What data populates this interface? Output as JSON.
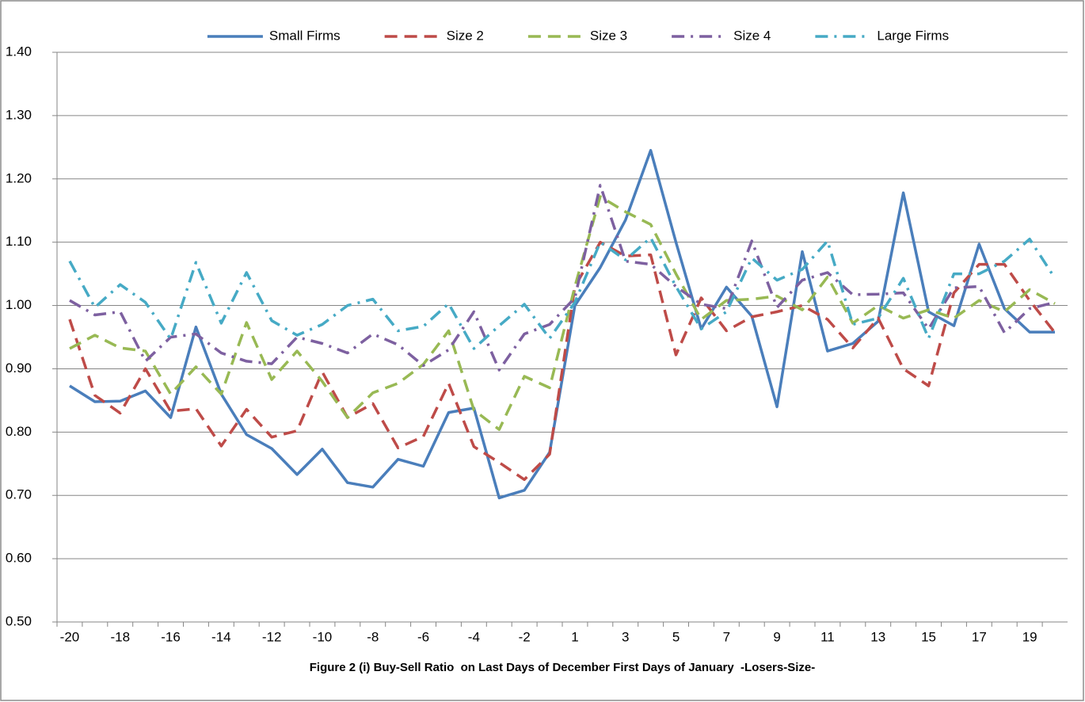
{
  "chart_data": {
    "type": "line",
    "x_label": "Figure 2 (i) Buy-Sell Ratio  on Last Days of December First Days of January  -Losers-Size-",
    "categories": [
      "-20",
      null,
      "-18",
      null,
      "-16",
      null,
      "-14",
      null,
      "-12",
      null,
      "-10",
      null,
      "-8",
      null,
      "-6",
      null,
      "-4",
      null,
      "-2",
      null,
      "1",
      null,
      "3",
      null,
      "5",
      null,
      "7",
      null,
      "9",
      null,
      "11",
      null,
      "13",
      null,
      "15",
      null,
      "17",
      null,
      "19",
      null
    ],
    "ylim": [
      0.5,
      1.4
    ],
    "yticks": [
      {
        "value": 0.5,
        "label": "0.50"
      },
      {
        "value": 0.6,
        "label": "0.60"
      },
      {
        "value": 0.7,
        "label": "0.70"
      },
      {
        "value": 0.8,
        "label": "0.80"
      },
      {
        "value": 0.9,
        "label": "0.90"
      },
      {
        "value": 1.0,
        "label": "1.00"
      },
      {
        "value": 1.1,
        "label": "1.10"
      },
      {
        "value": 1.2,
        "label": "1.20"
      },
      {
        "value": 1.3,
        "label": "1.30"
      },
      {
        "value": 1.4,
        "label": "1.40"
      }
    ],
    "grid": true,
    "legend": "top",
    "series": [
      {
        "name": "Small Firms",
        "color": "#4a7ebb",
        "line_style": "solid",
        "values": [
          0.873,
          0.848,
          0.849,
          0.865,
          0.823,
          0.966,
          0.86,
          0.796,
          0.774,
          0.733,
          0.773,
          0.72,
          0.713,
          0.757,
          0.746,
          0.831,
          0.838,
          0.696,
          0.708,
          0.768,
          1.0,
          1.06,
          1.135,
          1.245,
          1.1,
          0.963,
          1.029,
          0.983,
          0.84,
          1.085,
          0.928,
          0.94,
          0.975,
          1.178,
          0.99,
          0.968,
          1.097,
          0.995,
          0.958,
          0.958
        ]
      },
      {
        "name": "Size 2",
        "color": "#be4b48",
        "line_style": "dashed",
        "values": [
          0.978,
          0.858,
          0.83,
          0.9,
          0.833,
          0.837,
          0.778,
          0.836,
          0.792,
          0.802,
          0.895,
          0.823,
          0.845,
          0.775,
          0.793,
          0.877,
          0.777,
          0.752,
          0.725,
          0.765,
          1.03,
          1.1,
          1.078,
          1.08,
          0.922,
          1.012,
          0.96,
          0.982,
          0.99,
          1.0,
          0.978,
          0.933,
          0.98,
          0.9,
          0.873,
          1.02,
          1.065,
          1.065,
          1.008,
          0.957
        ]
      },
      {
        "name": "Size 3",
        "color": "#98b954",
        "line_style": "dashed",
        "values": [
          0.932,
          0.953,
          0.933,
          0.928,
          0.86,
          0.903,
          0.86,
          0.973,
          0.883,
          0.928,
          0.88,
          0.823,
          0.862,
          0.877,
          0.907,
          0.96,
          0.835,
          0.804,
          0.888,
          0.87,
          1.03,
          1.172,
          1.148,
          1.128,
          1.05,
          0.978,
          1.008,
          1.01,
          1.015,
          0.993,
          1.045,
          0.972,
          1.0,
          0.98,
          0.993,
          0.98,
          1.008,
          0.99,
          1.025,
          1.003
        ]
      },
      {
        "name": "Size 4",
        "color": "#7d60a0",
        "line_style": "dash-dot",
        "values": [
          1.008,
          0.985,
          0.99,
          0.912,
          0.95,
          0.955,
          0.925,
          0.912,
          0.908,
          0.95,
          0.94,
          0.925,
          0.955,
          0.938,
          0.905,
          0.93,
          0.99,
          0.898,
          0.955,
          0.97,
          1.012,
          1.19,
          1.07,
          1.065,
          1.03,
          1.002,
          0.995,
          1.102,
          0.997,
          1.04,
          1.052,
          1.017,
          1.018,
          1.02,
          0.963,
          1.028,
          1.03,
          0.957,
          0.995,
          1.005
        ]
      },
      {
        "name": "Large Firms",
        "color": "#46aac5",
        "line_style": "dash-dot",
        "values": [
          1.07,
          0.997,
          1.033,
          1.005,
          0.947,
          1.068,
          0.972,
          1.052,
          0.976,
          0.953,
          0.97,
          1.0,
          1.01,
          0.96,
          0.967,
          1.003,
          0.932,
          0.968,
          1.002,
          0.948,
          1.005,
          1.1,
          1.072,
          1.107,
          1.03,
          0.963,
          0.99,
          1.075,
          1.04,
          1.057,
          1.102,
          0.97,
          0.98,
          1.043,
          0.948,
          1.05,
          1.05,
          1.07,
          1.105,
          1.043
        ]
      }
    ]
  }
}
